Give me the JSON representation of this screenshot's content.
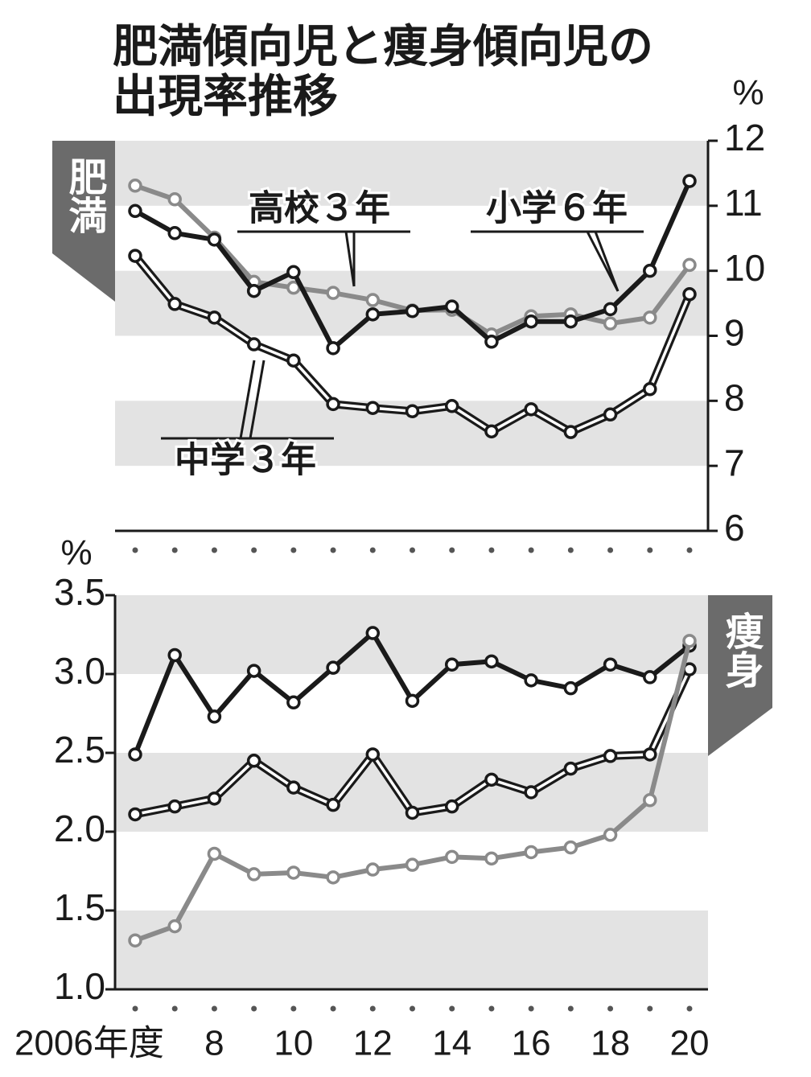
{
  "chart_data": [
    {
      "type": "line",
      "title": [
        "肥満傾向児と痩身傾向児の",
        "出現率推移"
      ],
      "panel_label": "肥満",
      "panel_label_side": "left",
      "y_unit": "%",
      "y_axis_side": "right",
      "categories": [
        null,
        null,
        null,
        null,
        null,
        null,
        null,
        null,
        null,
        null,
        null,
        null,
        null,
        null,
        null
      ],
      "ylim": [
        6,
        12
      ],
      "yticks": [
        6,
        7,
        8,
        9,
        10,
        11,
        12
      ],
      "series": [
        {
          "name": "高校３年",
          "color": "#8a8a8a",
          "style": "single",
          "values": [
            11.31,
            11.1,
            10.51,
            9.83,
            9.74,
            9.66,
            9.55,
            9.39,
            9.4,
            9.02,
            9.3,
            9.33,
            9.19,
            9.28,
            10.09
          ]
        },
        {
          "name": "中学３年",
          "color": "#1a1a1a",
          "style": "double",
          "values": [
            10.23,
            9.49,
            9.28,
            8.87,
            8.62,
            7.95,
            7.89,
            7.84,
            7.92,
            7.53,
            7.87,
            7.52,
            7.79,
            8.18,
            9.64
          ]
        },
        {
          "name": "小学６年",
          "color": "#1a1a1a",
          "style": "single",
          "values": [
            10.92,
            10.58,
            10.48,
            9.69,
            9.98,
            8.81,
            9.33,
            9.38,
            9.45,
            8.91,
            9.22,
            9.22,
            9.41,
            10.0,
            11.38
          ]
        }
      ]
    },
    {
      "type": "line",
      "panel_label": "痩身",
      "panel_label_side": "right",
      "y_unit": "%",
      "y_axis_side": "left",
      "categories": [
        "2006年度",
        null,
        "8",
        null,
        "10",
        null,
        "12",
        null,
        "14",
        null,
        "16",
        null,
        "18",
        null,
        "20"
      ],
      "ylim": [
        1.0,
        3.5
      ],
      "yticks": [
        {
          "value": 1,
          "label": "1.0"
        },
        1.5,
        {
          "value": 2,
          "label": "2.0"
        },
        2.5,
        {
          "value": 3,
          "label": "3.0"
        },
        3.5
      ],
      "series": [
        {
          "color": "#1a1a1a",
          "style": "single",
          "values": [
            2.49,
            3.12,
            2.73,
            3.02,
            2.82,
            3.04,
            3.26,
            2.83,
            3.06,
            3.08,
            2.96,
            2.91,
            3.06,
            2.98,
            3.18
          ]
        },
        {
          "color": "#1a1a1a",
          "style": "double",
          "values": [
            2.11,
            2.16,
            2.21,
            2.45,
            2.28,
            2.17,
            2.49,
            2.12,
            2.16,
            2.33,
            2.25,
            2.4,
            2.48,
            2.49,
            3.03
          ]
        },
        {
          "color": "#8a8a8a",
          "style": "single",
          "values": [
            1.31,
            1.4,
            1.86,
            1.73,
            1.74,
            1.71,
            1.76,
            1.79,
            1.84,
            1.83,
            1.87,
            1.9,
            1.98,
            2.2,
            3.21
          ]
        }
      ]
    }
  ]
}
